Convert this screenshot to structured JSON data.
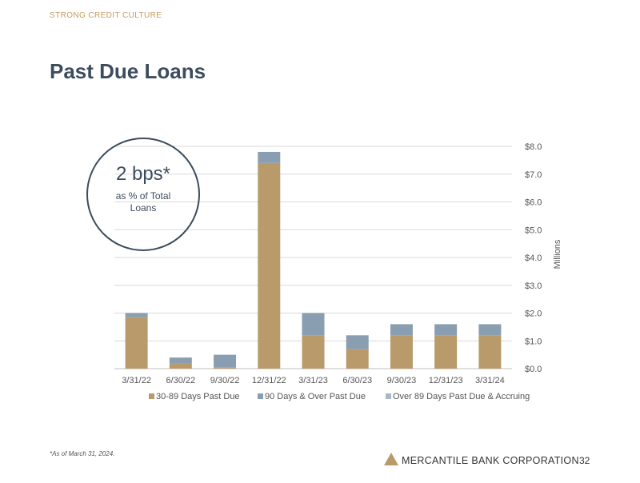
{
  "header": {
    "eyebrow": "STRONG CREDIT CULTURE",
    "title": "Past Due Loans"
  },
  "callout": {
    "value": "2 bps*",
    "caption": "as % of Total Loans"
  },
  "footnote": "*As of March 31, 2024.",
  "footer": {
    "company": "MERCANTILE BANK CORPORATION",
    "page": "32"
  },
  "colors": {
    "title": "#3d4c5d",
    "accent": "#c49a5f",
    "grid": "#d9d9d9"
  },
  "chart_data": {
    "type": "bar",
    "stacked": true,
    "categories": [
      "3/31/22",
      "6/30/22",
      "9/30/22",
      "12/31/22",
      "3/31/23",
      "6/30/23",
      "9/30/23",
      "12/31/23",
      "3/31/24"
    ],
    "series": [
      {
        "name": "30-89 Days Past Due",
        "color": "#b99a6b",
        "values": [
          1.85,
          0.2,
          0.05,
          7.4,
          1.2,
          0.7,
          1.2,
          1.2,
          1.2
        ]
      },
      {
        "name": "90 Days & Over Past Due",
        "color": "#8a9eb1",
        "values": [
          0.15,
          0.2,
          0.45,
          0.4,
          0.8,
          0.5,
          0.4,
          0.4,
          0.4
        ]
      },
      {
        "name": "Over 89 Days Past Due & Accruing",
        "color": "#a9b8c6",
        "values": [
          0,
          0,
          0,
          0,
          0,
          0,
          0,
          0,
          0
        ]
      }
    ],
    "ylabel": "Millions",
    "ylim": [
      0,
      8
    ],
    "yticks": [
      0,
      1,
      2,
      3,
      4,
      5,
      6,
      7,
      8
    ],
    "ytick_labels": [
      "$0.0",
      "$1.0",
      "$2.0",
      "$3.0",
      "$4.0",
      "$5.0",
      "$6.0",
      "$7.0",
      "$8.0"
    ],
    "y_axis_side": "right",
    "grid": true,
    "legend": "bottom"
  }
}
